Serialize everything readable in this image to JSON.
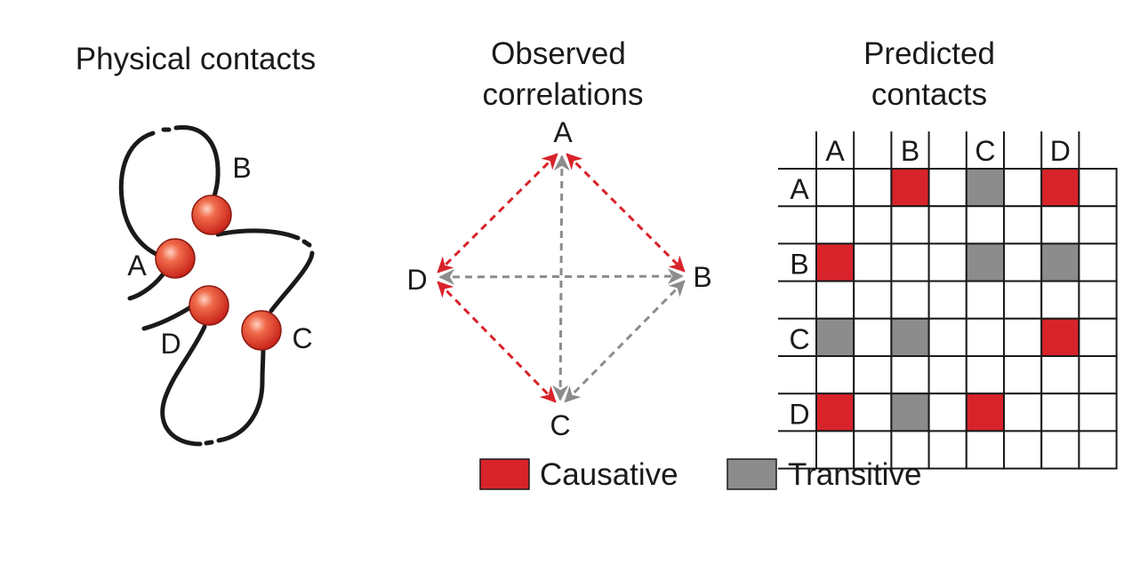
{
  "panels": {
    "physical": {
      "title": "Physical contacts",
      "labels": {
        "A": "A",
        "B": "B",
        "C": "C",
        "D": "D"
      }
    },
    "observed": {
      "title_line1": "Observed",
      "title_line2": "correlations",
      "nodes": {
        "A": "A",
        "B": "B",
        "C": "C",
        "D": "D"
      }
    },
    "predicted": {
      "title_line1": "Predicted",
      "title_line2": "contacts",
      "columns": [
        "A",
        "B",
        "C",
        "D"
      ],
      "rows": [
        "A",
        "B",
        "C",
        "D"
      ],
      "contacts": [
        [
          "",
          "causative",
          "transitive",
          "causative"
        ],
        [
          "causative",
          "",
          "transitive",
          "transitive"
        ],
        [
          "transitive",
          "transitive",
          "",
          "causative"
        ],
        [
          "causative",
          "transitive",
          "causative",
          ""
        ]
      ]
    }
  },
  "legend": {
    "causative": "Causative",
    "transitive": "Transitive"
  },
  "colors": {
    "causative": "#d8232a",
    "transitive": "#8c8c8c",
    "line": "#1a1a1a",
    "bead": "#e0462e"
  },
  "observed_edges": [
    {
      "from": "A",
      "to": "B",
      "type": "causative"
    },
    {
      "from": "A",
      "to": "D",
      "type": "causative"
    },
    {
      "from": "D",
      "to": "C",
      "type": "causative"
    },
    {
      "from": "A",
      "to": "C",
      "type": "transitive"
    },
    {
      "from": "D",
      "to": "B",
      "type": "transitive"
    },
    {
      "from": "B",
      "to": "C",
      "type": "transitive"
    }
  ]
}
